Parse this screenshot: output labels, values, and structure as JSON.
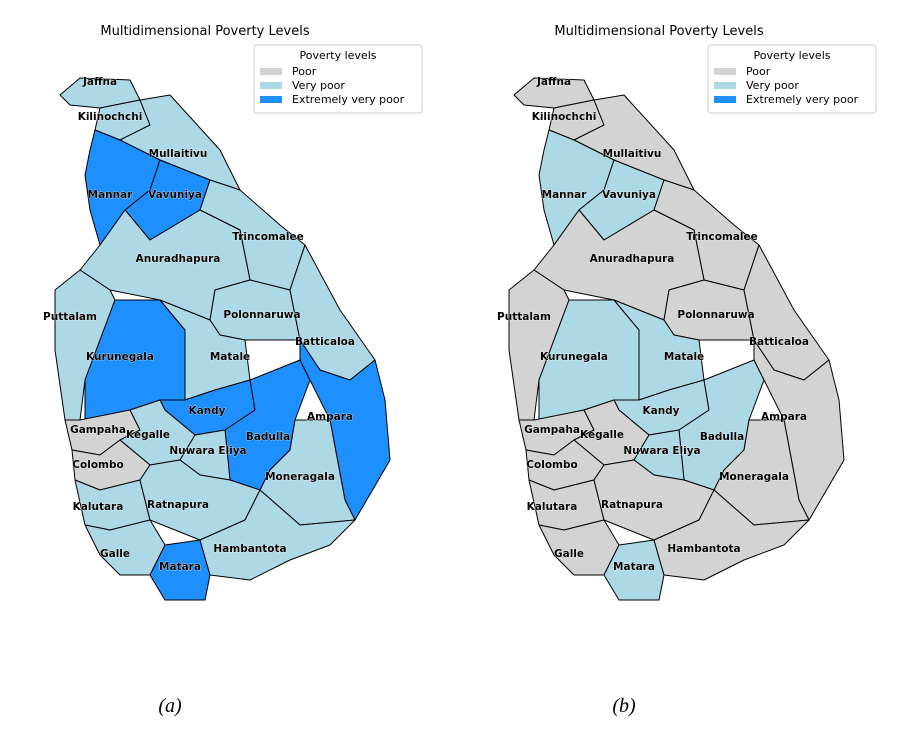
{
  "maps": [
    {
      "title": "Multidimensional Poverty Levels",
      "legend_title": "Poverty levels",
      "legend": [
        {
          "label": "Poor",
          "color": "#d3d3d3"
        },
        {
          "label": "Very poor",
          "color": "#add8e6"
        },
        {
          "label": "Extremely very poor",
          "color": "#1e8fff"
        }
      ],
      "districts": [
        {
          "name": "Jaffna",
          "level": "Very poor"
        },
        {
          "name": "Kilinochchi",
          "level": "Very poor"
        },
        {
          "name": "Mullaitivu",
          "level": "Very poor"
        },
        {
          "name": "Mannar",
          "level": "Extremely very poor"
        },
        {
          "name": "Vavuniya",
          "level": "Extremely very poor"
        },
        {
          "name": "Trincomalee",
          "level": "Very poor"
        },
        {
          "name": "Anuradhapura",
          "level": "Very poor"
        },
        {
          "name": "Puttalam",
          "level": "Very poor"
        },
        {
          "name": "Kurunegala",
          "level": "Extremely very poor"
        },
        {
          "name": "Polonnaruwa",
          "level": "Very poor"
        },
        {
          "name": "Matale",
          "level": "Very poor"
        },
        {
          "name": "Batticaloa",
          "level": "Very poor"
        },
        {
          "name": "Kandy",
          "level": "Extremely very poor"
        },
        {
          "name": "Badulla",
          "level": "Extremely very poor"
        },
        {
          "name": "Ampara",
          "level": "Extremely very poor"
        },
        {
          "name": "Gampaha",
          "level": "Poor"
        },
        {
          "name": "Kegalle",
          "level": "Very poor"
        },
        {
          "name": "Nuwara Eliya",
          "level": "Very poor"
        },
        {
          "name": "Colombo",
          "level": "Poor"
        },
        {
          "name": "Moneragala",
          "level": "Very poor"
        },
        {
          "name": "Kalutara",
          "level": "Very poor"
        },
        {
          "name": "Ratnapura",
          "level": "Very poor"
        },
        {
          "name": "Galle",
          "level": "Very poor"
        },
        {
          "name": "Matara",
          "level": "Extremely very poor"
        },
        {
          "name": "Hambantota",
          "level": "Very poor"
        }
      ],
      "caption": "(a)"
    },
    {
      "title": "Multidimensional Poverty Levels",
      "legend_title": "Poverty levels",
      "legend": [
        {
          "label": "Poor",
          "color": "#d3d3d3"
        },
        {
          "label": "Very poor",
          "color": "#add8e6"
        },
        {
          "label": "Extremely very poor",
          "color": "#1e8fff"
        }
      ],
      "districts": [
        {
          "name": "Jaffna",
          "level": "Poor"
        },
        {
          "name": "Kilinochchi",
          "level": "Poor"
        },
        {
          "name": "Mullaitivu",
          "level": "Poor"
        },
        {
          "name": "Mannar",
          "level": "Very poor"
        },
        {
          "name": "Vavuniya",
          "level": "Very poor"
        },
        {
          "name": "Trincomalee",
          "level": "Poor"
        },
        {
          "name": "Anuradhapura",
          "level": "Poor"
        },
        {
          "name": "Puttalam",
          "level": "Poor"
        },
        {
          "name": "Kurunegala",
          "level": "Very poor"
        },
        {
          "name": "Polonnaruwa",
          "level": "Poor"
        },
        {
          "name": "Matale",
          "level": "Very poor"
        },
        {
          "name": "Batticaloa",
          "level": "Poor"
        },
        {
          "name": "Kandy",
          "level": "Very poor"
        },
        {
          "name": "Badulla",
          "level": "Very poor"
        },
        {
          "name": "Ampara",
          "level": "Poor"
        },
        {
          "name": "Gampaha",
          "level": "Poor"
        },
        {
          "name": "Kegalle",
          "level": "Poor"
        },
        {
          "name": "Nuwara Eliya",
          "level": "Very poor"
        },
        {
          "name": "Colombo",
          "level": "Poor"
        },
        {
          "name": "Moneragala",
          "level": "Poor"
        },
        {
          "name": "Kalutara",
          "level": "Poor"
        },
        {
          "name": "Ratnapura",
          "level": "Poor"
        },
        {
          "name": "Galle",
          "level": "Poor"
        },
        {
          "name": "Matara",
          "level": "Very poor"
        },
        {
          "name": "Hambantota",
          "level": "Poor"
        }
      ],
      "caption": "(b)"
    }
  ]
}
